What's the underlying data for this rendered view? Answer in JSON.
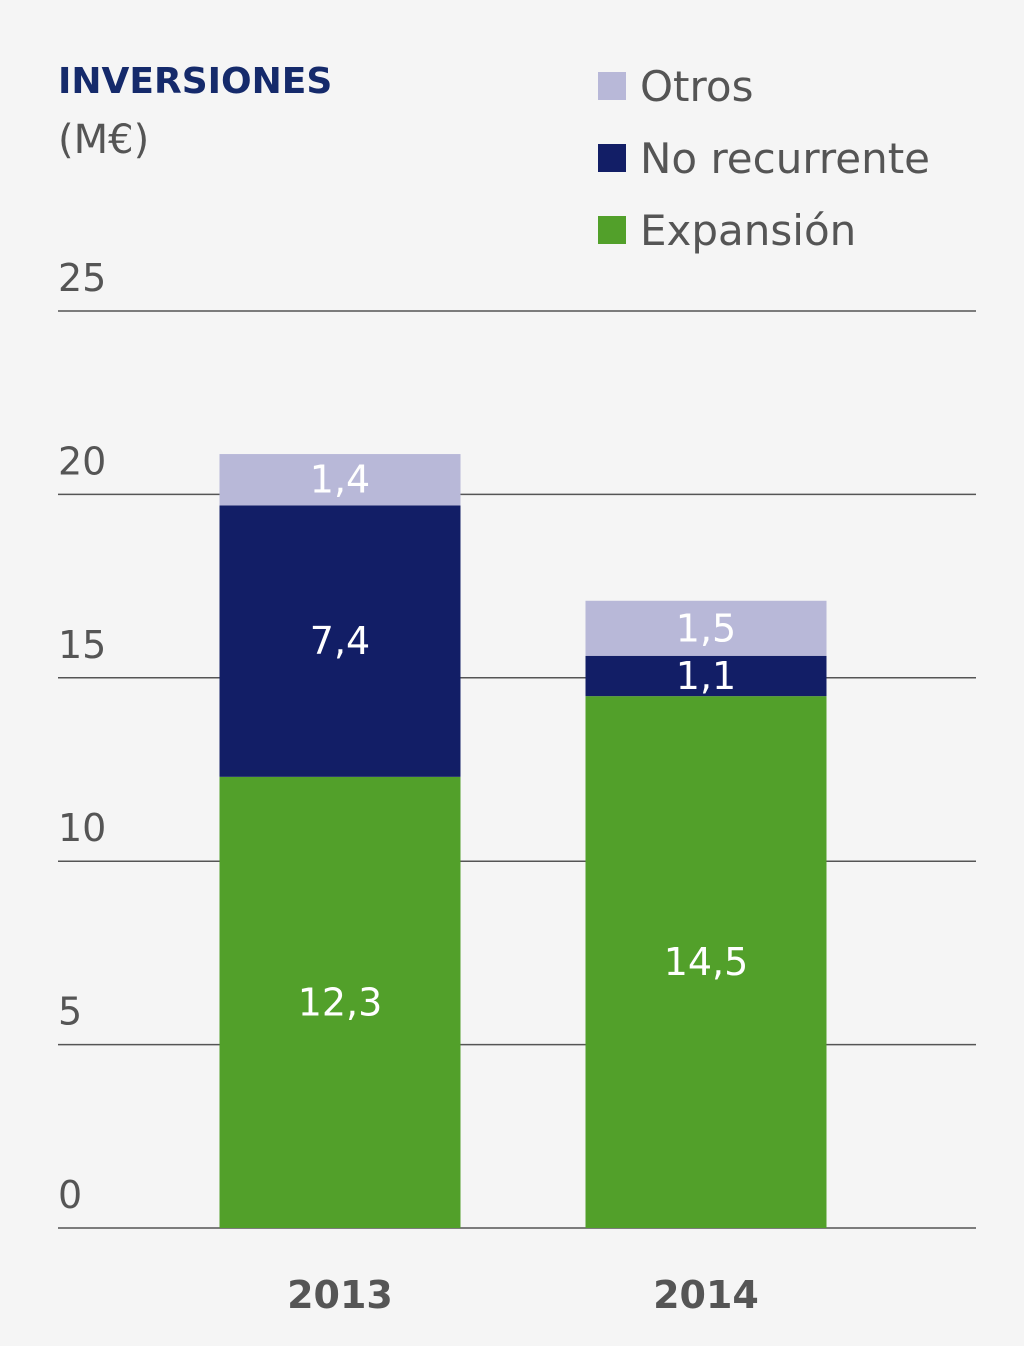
{
  "chart_data": {
    "type": "bar",
    "stacked": true,
    "title": "INVERSIONES",
    "subtitle": "(M€)",
    "categories": [
      "2013",
      "2014"
    ],
    "series": [
      {
        "name": "Expansión",
        "values": [
          12.3,
          14.5
        ],
        "labels": [
          "12,3",
          "14,5"
        ],
        "color": "#52a02a"
      },
      {
        "name": "No recurrente",
        "values": [
          7.4,
          1.1
        ],
        "labels": [
          "7,4",
          "1,1"
        ],
        "color": "#121e66"
      },
      {
        "name": "Otros",
        "values": [
          1.4,
          1.5
        ],
        "labels": [
          "1,4",
          "1,5"
        ],
        "color": "#b8b8d8"
      }
    ],
    "legend_order": [
      "Otros",
      "No recurrente",
      "Expansión"
    ],
    "y_ticks": [
      "0",
      "5",
      "10",
      "15",
      "20",
      "25"
    ],
    "ylim": [
      0,
      25
    ],
    "grid": true,
    "legend_position": "top-right"
  }
}
